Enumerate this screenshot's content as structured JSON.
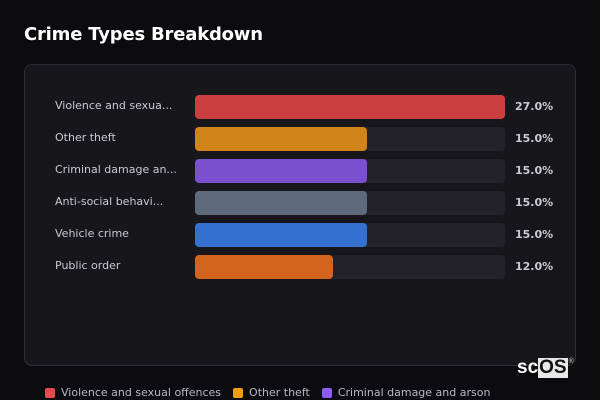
{
  "header": {
    "title": "Crime Types Breakdown"
  },
  "chart_data": {
    "type": "bar",
    "orientation": "horizontal",
    "title": "Crime Types Breakdown",
    "categories": [
      "Violence and sexual offences",
      "Other theft",
      "Criminal damage and arson",
      "Anti-social behaviour",
      "Vehicle crime",
      "Public order"
    ],
    "display_labels": [
      "Violence and sexua...",
      "Other theft",
      "Criminal damage an...",
      "Anti-social behavi...",
      "Vehicle crime",
      "Public order"
    ],
    "values": [
      27.0,
      15.0,
      15.0,
      15.0,
      15.0,
      12.0
    ],
    "value_labels": [
      "27.0%",
      "15.0%",
      "15.0%",
      "15.0%",
      "15.0%",
      "12.0%"
    ],
    "colors": [
      "#cc3f40",
      "#d0841a",
      "#7a4fd0",
      "#5f6b7a",
      "#3571d0",
      "#d2641f"
    ],
    "unit": "%",
    "xlim": [
      0,
      27
    ],
    "legend_position": "bottom",
    "grid": false
  },
  "rows": [
    {
      "label": "Violence and sexua...",
      "value": "27.0%",
      "pct": 100,
      "color": "#cc3f40"
    },
    {
      "label": "Other theft",
      "value": "15.0%",
      "pct": 55.6,
      "color": "#d0841a"
    },
    {
      "label": "Criminal damage an...",
      "value": "15.0%",
      "pct": 55.6,
      "color": "#7a4fd0"
    },
    {
      "label": "Anti-social behavi...",
      "value": "15.0%",
      "pct": 55.6,
      "color": "#5f6b7a"
    },
    {
      "label": "Vehicle crime",
      "value": "15.0%",
      "pct": 55.6,
      "color": "#3571d0"
    },
    {
      "label": "Public order",
      "value": "12.0%",
      "pct": 44.4,
      "color": "#d2641f"
    }
  ],
  "legend": [
    {
      "label": "Violence and sexual offences",
      "color": "#e5484d"
    },
    {
      "label": "Other theft",
      "color": "#f59e0b"
    },
    {
      "label": "Criminal damage and arson",
      "color": "#8b5cf6"
    }
  ],
  "branding": {
    "logo_sc": "sc",
    "logo_os": "OS",
    "logo_mark": "®"
  }
}
